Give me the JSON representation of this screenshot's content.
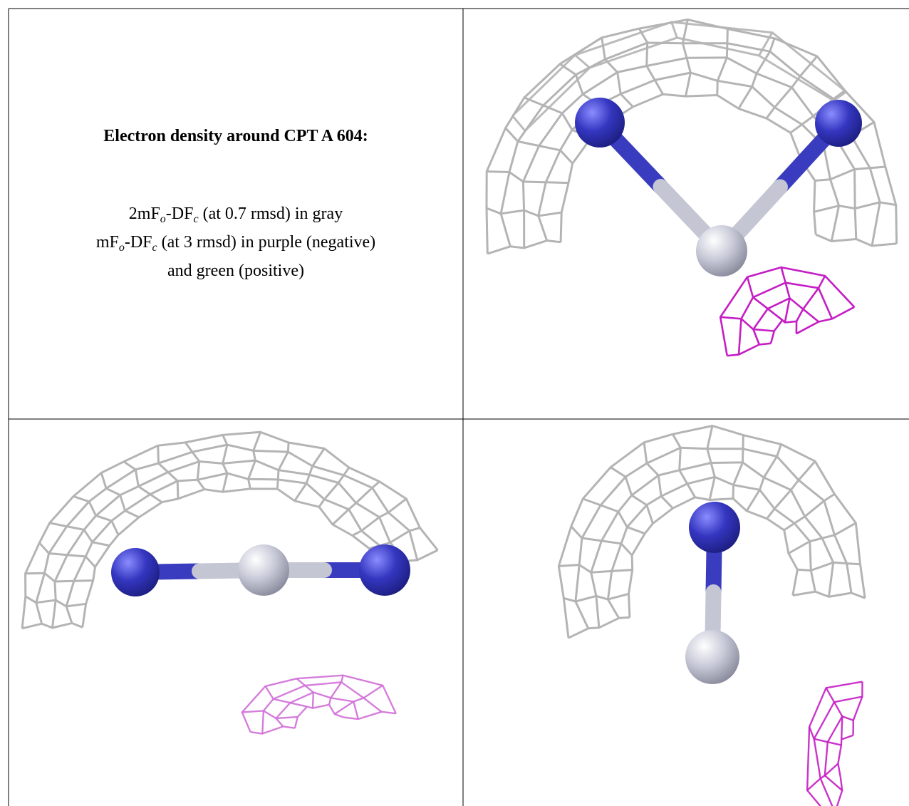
{
  "caption": {
    "title": "Electron density around CPT A 604:",
    "lines": [
      [
        "2mF",
        "o",
        "-DF",
        "c",
        " (at 0.7 rmsd) in gray"
      ],
      [
        "mF",
        "o",
        "-DF",
        "c",
        " (at 3 rmsd) in purple (negative)"
      ],
      [
        "and green (positive)"
      ]
    ]
  }
}
